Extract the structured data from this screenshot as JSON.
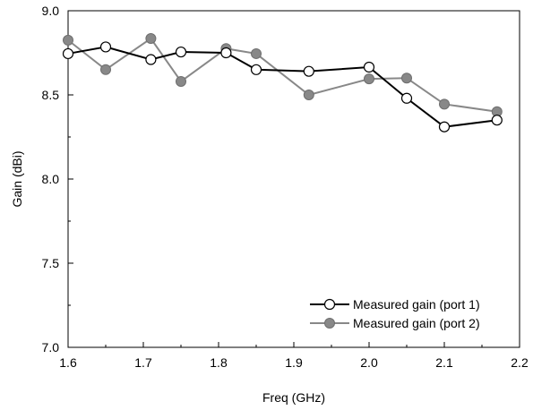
{
  "chart_data": {
    "type": "line",
    "xlabel": "Freq (GHz)",
    "ylabel": "Gain (dBi)",
    "xlim": [
      1.6,
      2.2
    ],
    "ylim": [
      7.0,
      9.0
    ],
    "x_ticks": [
      "1.6",
      "1.7",
      "1.8",
      "1.9",
      "2.0",
      "2.1",
      "2.2"
    ],
    "y_ticks": [
      "7.0",
      "7.5",
      "8.0",
      "8.5",
      "9.0"
    ],
    "grid": false,
    "legend_position": "bottom-right",
    "series": [
      {
        "name": "Measured gain (port 1)",
        "color": "#000000",
        "marker": "open-circle",
        "x": [
          1.6,
          1.65,
          1.71,
          1.75,
          1.81,
          1.85,
          1.92,
          2.0,
          2.05,
          2.1,
          2.17
        ],
        "y": [
          8.745,
          8.785,
          8.71,
          8.755,
          8.75,
          8.65,
          8.64,
          8.665,
          8.48,
          8.31,
          8.35
        ]
      },
      {
        "name": "Measured gain (port 2)",
        "color": "#888888",
        "marker": "filled-circle",
        "x": [
          1.6,
          1.65,
          1.71,
          1.75,
          1.81,
          1.85,
          1.92,
          2.0,
          2.05,
          2.1,
          2.17
        ],
        "y": [
          8.825,
          8.65,
          8.835,
          8.58,
          8.775,
          8.745,
          8.5,
          8.595,
          8.6,
          8.445,
          8.4
        ]
      }
    ]
  }
}
